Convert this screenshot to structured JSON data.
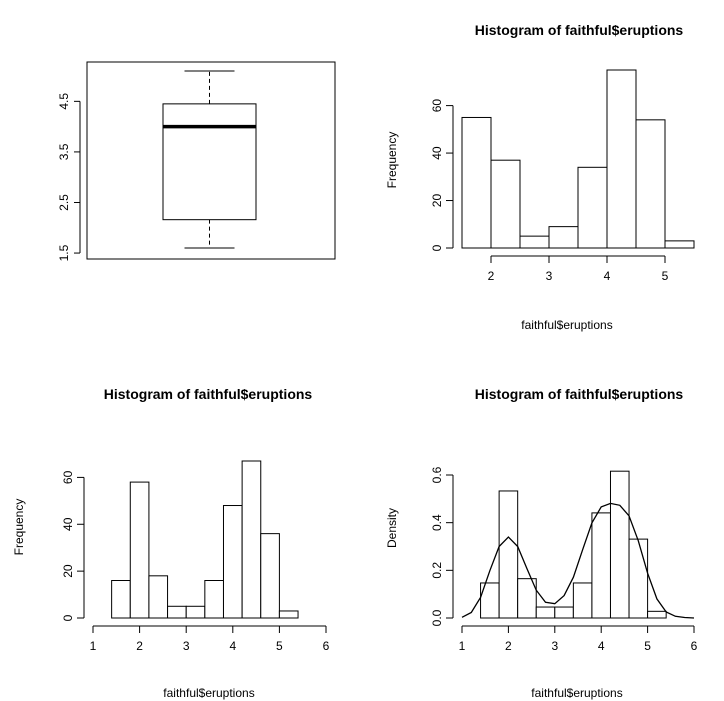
{
  "chart_data": [
    {
      "type": "boxplot",
      "title": "",
      "xlabel": "",
      "ylabel": "",
      "ylim": [
        1.5,
        5.2
      ],
      "yticks": [
        1.5,
        2.5,
        3.5,
        4.5
      ],
      "ytick_labels": [
        "1.5",
        "2.5",
        "3.5",
        "4.5"
      ],
      "stats": {
        "min": 1.6,
        "q1": 2.16,
        "median": 4.0,
        "q3": 4.45,
        "max": 5.1
      }
    },
    {
      "type": "histogram",
      "title": "Histogram of faithful$eruptions",
      "xlabel": "faithful$eruptions",
      "ylabel": "Frequency",
      "xlim": [
        1.5,
        5.5
      ],
      "ylim": [
        0,
        75
      ],
      "xticks": [
        2,
        3,
        4,
        5
      ],
      "xtick_labels": [
        "2",
        "3",
        "4",
        "5"
      ],
      "yticks": [
        0,
        20,
        40,
        60
      ],
      "ytick_labels": [
        "0",
        "20",
        "40",
        "60"
      ],
      "breaks": [
        1.5,
        2.0,
        2.5,
        3.0,
        3.5,
        4.0,
        4.5,
        5.0,
        5.5
      ],
      "counts": [
        55,
        37,
        5,
        9,
        34,
        75,
        54,
        3
      ]
    },
    {
      "type": "histogram",
      "title": "Histogram of faithful$eruptions",
      "xlabel": "faithful$eruptions",
      "ylabel": "Frequency",
      "xlim": [
        1,
        6
      ],
      "ylim": [
        0,
        67
      ],
      "xticks": [
        1,
        2,
        3,
        4,
        5,
        6
      ],
      "xtick_labels": [
        "1",
        "2",
        "3",
        "4",
        "5",
        "6"
      ],
      "yticks": [
        0,
        20,
        40,
        60
      ],
      "ytick_labels": [
        "0",
        "20",
        "40",
        "60"
      ],
      "breaks": [
        1.4,
        1.8,
        2.2,
        2.6,
        3.0,
        3.4,
        3.8,
        4.2,
        4.6,
        5.0,
        5.4,
        5.8
      ],
      "counts": [
        16,
        58,
        18,
        5,
        5,
        16,
        48,
        67,
        36,
        3,
        0
      ]
    },
    {
      "type": "histogram",
      "title": "Histogram of faithful$eruptions",
      "xlabel": "faithful$eruptions",
      "ylabel": "Density",
      "xlim": [
        1,
        6
      ],
      "ylim": [
        0,
        0.62
      ],
      "xticks": [
        1,
        2,
        3,
        4,
        5,
        6
      ],
      "xtick_labels": [
        "1",
        "2",
        "3",
        "4",
        "5",
        "6"
      ],
      "yticks": [
        0,
        0.2,
        0.4,
        0.6
      ],
      "ytick_labels": [
        "0.0",
        "0.2",
        "0.4",
        "0.6"
      ],
      "breaks": [
        1.4,
        1.8,
        2.2,
        2.6,
        3.0,
        3.4,
        3.8,
        4.2,
        4.6,
        5.0,
        5.4,
        5.8
      ],
      "densities": [
        0.147,
        0.533,
        0.165,
        0.046,
        0.046,
        0.147,
        0.441,
        0.616,
        0.331,
        0.028,
        0.0
      ],
      "density_curve": {
        "x": [
          1.0,
          1.2,
          1.4,
          1.6,
          1.8,
          2.0,
          2.2,
          2.4,
          2.6,
          2.8,
          3.0,
          3.2,
          3.4,
          3.6,
          3.8,
          4.0,
          4.2,
          4.4,
          4.6,
          4.8,
          5.0,
          5.2,
          5.4,
          5.6,
          5.8,
          6.0
        ],
        "y": [
          0.003,
          0.023,
          0.087,
          0.198,
          0.3,
          0.34,
          0.3,
          0.207,
          0.117,
          0.066,
          0.06,
          0.094,
          0.171,
          0.286,
          0.399,
          0.466,
          0.481,
          0.473,
          0.429,
          0.324,
          0.188,
          0.08,
          0.025,
          0.007,
          0.002,
          0.0
        ]
      }
    }
  ]
}
